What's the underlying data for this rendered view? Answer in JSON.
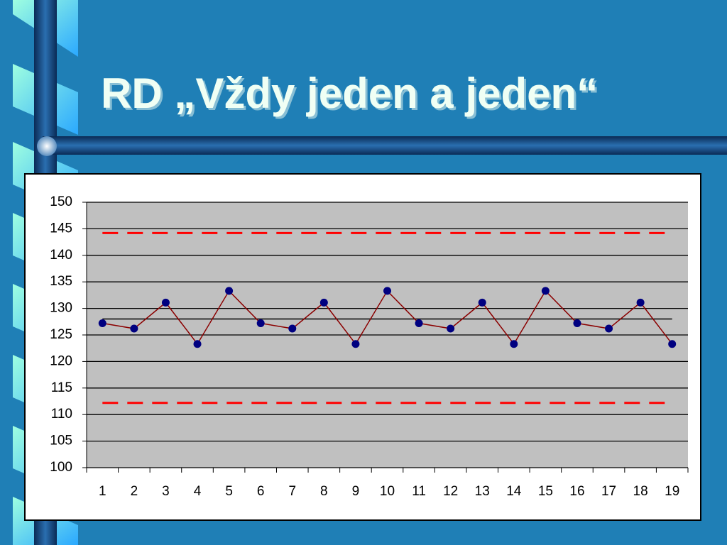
{
  "chart_data": {
    "type": "line",
    "title": "RD „Vždy jeden a jeden“",
    "categories": [
      1,
      2,
      3,
      4,
      5,
      6,
      7,
      8,
      9,
      10,
      11,
      12,
      13,
      14,
      15,
      16,
      17,
      18,
      19
    ],
    "series": [
      {
        "color": "#8b0000",
        "marker_color": "#000080",
        "values": [
          127.2,
          126.2,
          131.1,
          123.3,
          133.3,
          127.2,
          126.2,
          131.1,
          123.3,
          133.3,
          127.2,
          126.2,
          131.1,
          123.3,
          133.3,
          127.2,
          126.2,
          131.1,
          123.3
        ]
      }
    ],
    "reference_lines": [
      {
        "value": 144.2,
        "color": "#ff0000",
        "dashed": true
      },
      {
        "value": 128,
        "color": "#000000",
        "dashed": false
      },
      {
        "value": 112.2,
        "color": "#ff0000",
        "dashed": true
      }
    ],
    "ylim": [
      100,
      150
    ],
    "yticks": [
      100,
      105,
      110,
      115,
      120,
      125,
      130,
      135,
      140,
      145,
      150
    ],
    "grid": true,
    "plot_background": "#c0c0c0"
  }
}
